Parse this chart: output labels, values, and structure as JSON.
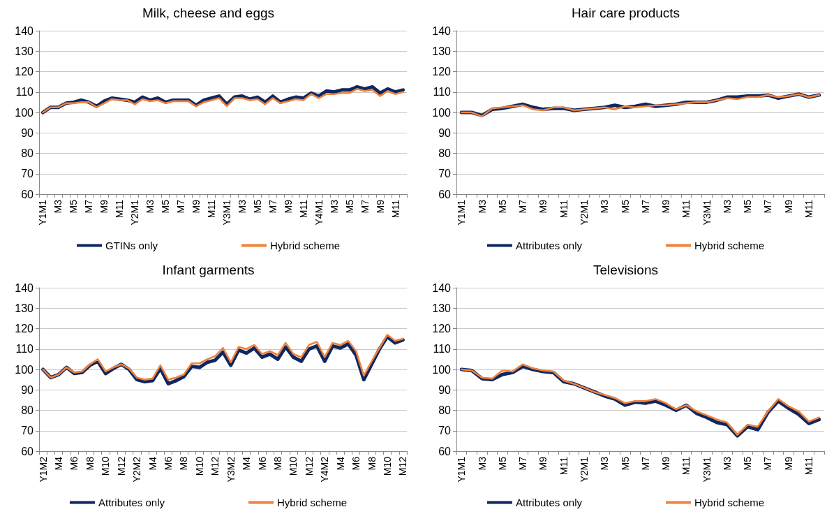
{
  "chart_data": [
    {
      "type": "line",
      "title": "Milk, cheese and eggs",
      "categories": [
        "Y1M1",
        null,
        "M3",
        null,
        "M5",
        null,
        "M7",
        null,
        "M9",
        null,
        "M11",
        null,
        "Y2M1",
        null,
        "M3",
        null,
        "M5",
        null,
        "M7",
        null,
        "M9",
        null,
        "M11",
        null,
        "Y3M1",
        null,
        "M3",
        null,
        "M5",
        null,
        "M7",
        null,
        "M9",
        null,
        "M11",
        null,
        "Y4M1",
        null,
        "M3",
        null,
        "M5",
        null,
        "M7",
        null,
        "M9",
        null,
        "M11",
        null
      ],
      "series": [
        {
          "name": "GTINs only",
          "color": "#0f2760",
          "values": [
            100,
            102.5,
            102.5,
            104.5,
            105,
            106,
            105,
            103,
            105.5,
            107,
            106.5,
            106,
            105,
            107.5,
            106,
            107,
            105,
            106,
            106,
            106,
            103.5,
            106,
            107,
            108,
            104,
            107.5,
            108,
            106.5,
            107.5,
            105,
            108,
            105,
            106.5,
            107.5,
            107,
            109.5,
            108,
            110.5,
            110,
            111,
            111,
            112.5,
            111.5,
            112.5,
            109.5,
            111.5,
            110,
            111
          ]
        },
        {
          "name": "Hybrid scheme",
          "color": "#f0823a",
          "values": [
            100,
            102.5,
            102.5,
            104.5,
            104.5,
            105,
            105,
            102.5,
            104.5,
            106.5,
            106,
            106,
            104,
            106.5,
            105.5,
            106,
            104.5,
            105.5,
            105.5,
            105.5,
            103,
            105,
            106,
            107,
            103,
            107,
            107,
            106,
            106.5,
            104,
            107,
            104.5,
            105.5,
            106.5,
            106,
            109,
            107,
            109,
            109,
            109.5,
            109.5,
            111.5,
            110.5,
            111,
            108,
            110.5,
            109,
            110
          ]
        }
      ],
      "ylim": [
        60,
        140
      ],
      "yticks": [
        60,
        70,
        80,
        90,
        100,
        110,
        120,
        130,
        140
      ],
      "grid": "y",
      "legend": "bottom",
      "marker": "none",
      "line_style": "solid"
    },
    {
      "type": "line",
      "title": "Hair care products",
      "categories": [
        "Y1M1",
        null,
        "M3",
        null,
        "M5",
        null,
        "M7",
        null,
        "M9",
        null,
        "M11",
        null,
        "Y2M1",
        null,
        "M3",
        null,
        "M5",
        null,
        "M7",
        null,
        "M9",
        null,
        "M11",
        null,
        "Y3M1",
        null,
        "M3",
        null,
        "M5",
        null,
        "M7",
        null,
        "M9",
        null,
        "M11",
        null
      ],
      "series": [
        {
          "name": "Attributes only",
          "color": "#0f2760",
          "values": [
            100,
            100,
            98.5,
            101.5,
            102,
            103,
            104,
            102.5,
            101.5,
            102,
            102,
            101,
            101.5,
            102,
            102.5,
            103.5,
            102.5,
            103,
            104,
            103,
            103.5,
            104,
            105,
            105,
            105,
            106,
            107.5,
            107.5,
            108,
            108,
            108.5,
            107,
            108,
            109,
            107.5,
            108.5
          ]
        },
        {
          "name": "Hybrid scheme",
          "color": "#f0823a",
          "values": [
            100,
            100,
            98,
            102,
            102.5,
            103,
            103.5,
            101.5,
            101,
            102.5,
            102.5,
            101,
            101.5,
            102,
            102.5,
            101.5,
            103,
            102.5,
            103,
            103.5,
            103.5,
            104,
            104.5,
            105,
            105,
            106,
            107,
            106.5,
            107.5,
            107.5,
            108.5,
            107.5,
            108,
            109,
            107.5,
            108.5
          ]
        }
      ],
      "ylim": [
        60,
        140
      ],
      "yticks": [
        60,
        70,
        80,
        90,
        100,
        110,
        120,
        130,
        140
      ],
      "grid": "y",
      "legend": "bottom",
      "marker": "none",
      "line_style": "solid"
    },
    {
      "type": "line",
      "title": "Infant garments",
      "categories": [
        "Y1M2",
        null,
        "M4",
        null,
        "M6",
        null,
        "M8",
        null,
        "M10",
        null,
        "M12",
        null,
        "Y2M2",
        null,
        "M4",
        null,
        "M6",
        null,
        "M8",
        null,
        "M10",
        null,
        "M12",
        null,
        "Y3M2",
        null,
        "M4",
        null,
        "M6",
        null,
        "M8",
        null,
        "M10",
        null,
        "M12",
        null,
        "Y4M2",
        null,
        "M4",
        null,
        "M6",
        null,
        "M8",
        null,
        "M10",
        null,
        "M12"
      ],
      "series": [
        {
          "name": "Attributes only",
          "color": "#0f2760",
          "values": [
            100,
            96,
            97.5,
            101,
            98,
            98.5,
            102,
            104,
            98,
            100.5,
            102.5,
            100,
            95,
            94,
            94.5,
            100.5,
            93,
            94.5,
            96.5,
            101.5,
            101,
            103.5,
            104.5,
            108.5,
            102,
            109.5,
            108,
            110.5,
            106,
            107.5,
            105,
            111,
            106,
            104,
            110,
            111.5,
            104,
            111.5,
            110.5,
            112.5,
            107,
            95,
            102.5,
            110,
            116,
            113,
            114.5
          ]
        },
        {
          "name": "Hybrid scheme",
          "color": "#f0823a",
          "values": [
            100,
            96,
            97.5,
            101,
            98.5,
            99,
            102.5,
            105,
            99,
            101,
            102.5,
            100.5,
            96,
            95,
            95.5,
            102,
            95,
            96,
            97.5,
            103,
            103,
            105,
            106.5,
            110.5,
            103.5,
            111,
            110,
            112,
            107.5,
            109,
            107,
            113,
            107.5,
            106,
            112,
            113.5,
            106,
            113,
            112,
            114,
            109,
            97,
            104,
            110.5,
            117,
            114,
            115
          ]
        }
      ],
      "ylim": [
        60,
        140
      ],
      "yticks": [
        60,
        70,
        80,
        90,
        100,
        110,
        120,
        130,
        140
      ],
      "grid": "y",
      "legend": "bottom",
      "marker": "none",
      "line_style": "solid"
    },
    {
      "type": "line",
      "title": "Televisions",
      "categories": [
        "Y1M1",
        null,
        "M3",
        null,
        "M5",
        null,
        "M7",
        null,
        "M9",
        null,
        "M11",
        null,
        "Y2M1",
        null,
        "M3",
        null,
        "M5",
        null,
        "M7",
        null,
        "M9",
        null,
        "M11",
        null,
        "Y3M1",
        null,
        "M3",
        null,
        "M5",
        null,
        "M7",
        null,
        "M9",
        null,
        "M11",
        null
      ],
      "series": [
        {
          "name": "Attributes only",
          "color": "#0f2760",
          "values": [
            100,
            99.5,
            95.5,
            95,
            97.5,
            98.5,
            101.5,
            100,
            99,
            98.5,
            94,
            93,
            91,
            89,
            87,
            85.5,
            82.5,
            84,
            83.5,
            84.5,
            82.5,
            80,
            82.5,
            78.5,
            76.5,
            74,
            73,
            67.5,
            72,
            70.5,
            79,
            84.5,
            81,
            78,
            73.5,
            75.5
          ]
        },
        {
          "name": "Hybrid scheme",
          "color": "#f0823a",
          "values": [
            100,
            99.5,
            96,
            95.5,
            99.5,
            99,
            102.5,
            100.5,
            99.5,
            99,
            94.5,
            93,
            91,
            89,
            87.5,
            86,
            83.5,
            84.5,
            84.5,
            85.5,
            83.5,
            80.5,
            82.5,
            79.5,
            77.5,
            75.5,
            74,
            68,
            73,
            72,
            79.5,
            85.5,
            82,
            79.5,
            74.5,
            76.5
          ]
        }
      ],
      "ylim": [
        60,
        140
      ],
      "yticks": [
        60,
        70,
        80,
        90,
        100,
        110,
        120,
        130,
        140
      ],
      "grid": "y",
      "legend": "bottom",
      "marker": "none",
      "line_style": "solid"
    }
  ]
}
